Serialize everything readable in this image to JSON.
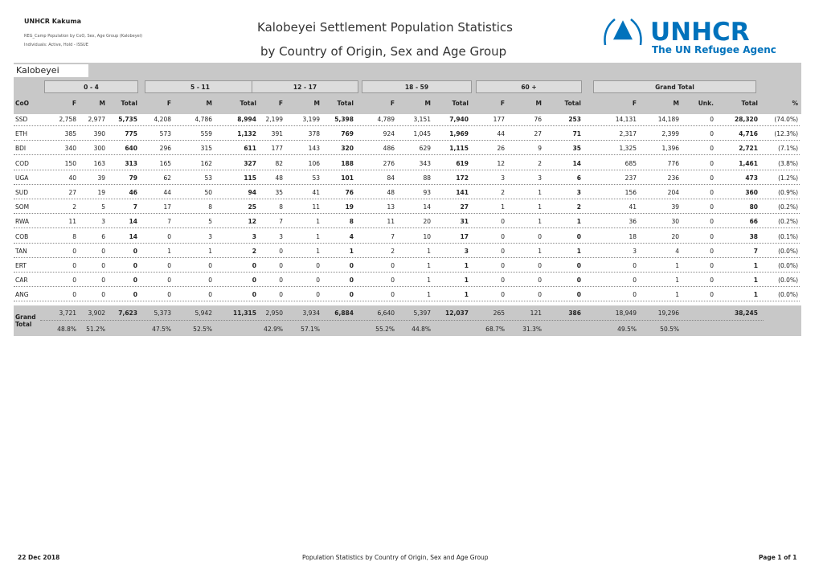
{
  "header": {
    "org": "UNHCR Kakuma",
    "report_name": "REG_Camp Population by CoO, Sex, Age Group (Kalobeyei)",
    "filter": "Individuals: Active, Hold - ISSUE",
    "title_line1": "Kalobeyei Settlement Population Statistics",
    "title_line2": "by Country of Origin, Sex and Age Group",
    "logo_name": "UNHCR",
    "logo_tagline": "The UN Refugee Agency"
  },
  "table": {
    "section": "Kalobeyei",
    "groups": [
      "0 - 4",
      "5 - 11",
      "12 - 17",
      "18 - 59",
      "60 +",
      "Grand Total"
    ],
    "column_headers": [
      "CoO",
      "F",
      "M",
      "Total",
      "F",
      "M",
      "Total",
      "F",
      "M",
      "Total",
      "F",
      "M",
      "Total",
      "F",
      "M",
      "Total",
      "F",
      "M",
      "Unk.",
      "Total",
      "%"
    ],
    "rows": [
      [
        "SSD",
        "2,758",
        "2,977",
        "5,735",
        "4,208",
        "4,786",
        "8,994",
        "2,199",
        "3,199",
        "5,398",
        "4,789",
        "3,151",
        "7,940",
        "177",
        "76",
        "253",
        "14,131",
        "14,189",
        "0",
        "28,320",
        "(74.0%)"
      ],
      [
        "ETH",
        "385",
        "390",
        "775",
        "573",
        "559",
        "1,132",
        "391",
        "378",
        "769",
        "924",
        "1,045",
        "1,969",
        "44",
        "27",
        "71",
        "2,317",
        "2,399",
        "0",
        "4,716",
        "(12.3%)"
      ],
      [
        "BDI",
        "340",
        "300",
        "640",
        "296",
        "315",
        "611",
        "177",
        "143",
        "320",
        "486",
        "629",
        "1,115",
        "26",
        "9",
        "35",
        "1,325",
        "1,396",
        "0",
        "2,721",
        "(7.1%)"
      ],
      [
        "COD",
        "150",
        "163",
        "313",
        "165",
        "162",
        "327",
        "82",
        "106",
        "188",
        "276",
        "343",
        "619",
        "12",
        "2",
        "14",
        "685",
        "776",
        "0",
        "1,461",
        "(3.8%)"
      ],
      [
        "UGA",
        "40",
        "39",
        "79",
        "62",
        "53",
        "115",
        "48",
        "53",
        "101",
        "84",
        "88",
        "172",
        "3",
        "3",
        "6",
        "237",
        "236",
        "0",
        "473",
        "(1.2%)"
      ],
      [
        "SUD",
        "27",
        "19",
        "46",
        "44",
        "50",
        "94",
        "35",
        "41",
        "76",
        "48",
        "93",
        "141",
        "2",
        "1",
        "3",
        "156",
        "204",
        "0",
        "360",
        "(0.9%)"
      ],
      [
        "SOM",
        "2",
        "5",
        "7",
        "17",
        "8",
        "25",
        "8",
        "11",
        "19",
        "13",
        "14",
        "27",
        "1",
        "1",
        "2",
        "41",
        "39",
        "0",
        "80",
        "(0.2%)"
      ],
      [
        "RWA",
        "11",
        "3",
        "14",
        "7",
        "5",
        "12",
        "7",
        "1",
        "8",
        "11",
        "20",
        "31",
        "0",
        "1",
        "1",
        "36",
        "30",
        "0",
        "66",
        "(0.2%)"
      ],
      [
        "COB",
        "8",
        "6",
        "14",
        "0",
        "3",
        "3",
        "3",
        "1",
        "4",
        "7",
        "10",
        "17",
        "0",
        "0",
        "0",
        "18",
        "20",
        "0",
        "38",
        "(0.1%)"
      ],
      [
        "TAN",
        "0",
        "0",
        "0",
        "1",
        "1",
        "2",
        "0",
        "1",
        "1",
        "2",
        "1",
        "3",
        "0",
        "1",
        "1",
        "3",
        "4",
        "0",
        "7",
        "(0.0%)"
      ],
      [
        "ERT",
        "0",
        "0",
        "0",
        "0",
        "0",
        "0",
        "0",
        "0",
        "0",
        "0",
        "1",
        "1",
        "0",
        "0",
        "0",
        "0",
        "1",
        "0",
        "1",
        "(0.0%)"
      ],
      [
        "CAR",
        "0",
        "0",
        "0",
        "0",
        "0",
        "0",
        "0",
        "0",
        "0",
        "0",
        "1",
        "1",
        "0",
        "0",
        "0",
        "0",
        "1",
        "0",
        "1",
        "(0.0%)"
      ],
      [
        "ANG",
        "0",
        "0",
        "0",
        "0",
        "0",
        "0",
        "0",
        "0",
        "0",
        "0",
        "1",
        "1",
        "0",
        "0",
        "0",
        "0",
        "1",
        "0",
        "1",
        "(0.0%)"
      ]
    ],
    "totals": {
      "label_line1": "Grand",
      "label_line2": "Total",
      "counts": [
        "3,721",
        "3,902",
        "7,623",
        "5,373",
        "5,942",
        "11,315",
        "2,950",
        "3,934",
        "6,884",
        "6,640",
        "5,397",
        "12,037",
        "265",
        "121",
        "386",
        "18,949",
        "19,296",
        "38,245"
      ],
      "percents": [
        "48.8%",
        "51.2%",
        "47.5%",
        "52.5%",
        "42.9%",
        "57.1%",
        "55.2%",
        "44.8%",
        "68.7%",
        "31.3%",
        "49.5%",
        "50.5%"
      ]
    }
  },
  "footer": {
    "date": "22 Dec 2018",
    "center": "Population Statistics by Country of Origin, Sex and Age Group",
    "page": "Page 1 of 1"
  }
}
